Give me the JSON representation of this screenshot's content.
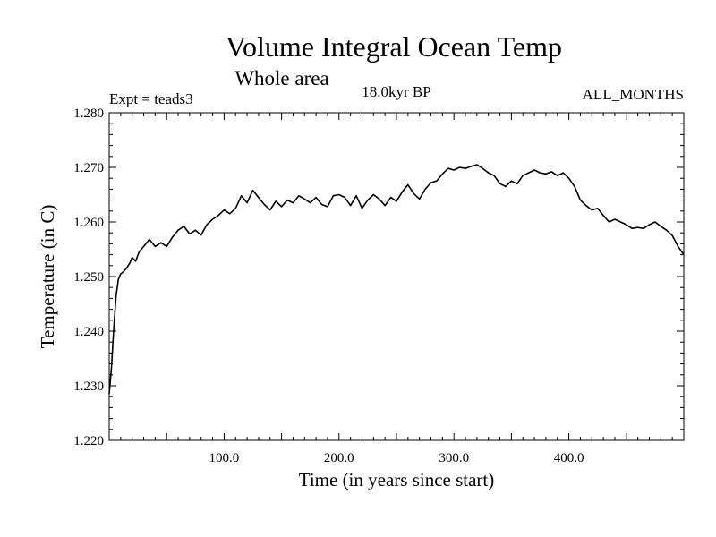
{
  "chart_data": {
    "type": "line",
    "title": "Volume Integral Ocean Temp",
    "subtitle": "Whole area",
    "left_label": "Expt = teads3",
    "center_label": "18.0kyr BP",
    "right_label": "ALL_MONTHS",
    "xlabel": "Time (in years since start)",
    "ylabel": "Temperature (in C)",
    "xlim": [
      0,
      500
    ],
    "ylim": [
      1.22,
      1.28
    ],
    "x_ticks": [
      100,
      200,
      300,
      400
    ],
    "x_tick_labels": [
      "100.0",
      "200.0",
      "300.0",
      "400.0"
    ],
    "y_ticks": [
      1.22,
      1.23,
      1.24,
      1.25,
      1.26,
      1.27,
      1.28
    ],
    "y_tick_labels": [
      "1.220",
      "1.230",
      "1.240",
      "1.250",
      "1.260",
      "1.270",
      "1.280"
    ],
    "series": [
      {
        "name": "Volume Integral Ocean Temp",
        "x": [
          0,
          2,
          4,
          6,
          8,
          10,
          12,
          15,
          18,
          20,
          23,
          26,
          30,
          35,
          40,
          45,
          50,
          55,
          60,
          65,
          70,
          75,
          80,
          85,
          90,
          95,
          100,
          105,
          110,
          115,
          120,
          125,
          130,
          135,
          140,
          145,
          150,
          155,
          160,
          165,
          170,
          175,
          180,
          185,
          190,
          195,
          200,
          205,
          210,
          215,
          220,
          225,
          230,
          235,
          240,
          245,
          250,
          255,
          260,
          265,
          270,
          275,
          280,
          285,
          290,
          295,
          300,
          305,
          310,
          315,
          320,
          325,
          330,
          335,
          340,
          345,
          350,
          355,
          360,
          365,
          370,
          375,
          380,
          385,
          390,
          395,
          400,
          405,
          410,
          415,
          420,
          425,
          430,
          435,
          440,
          445,
          450,
          455,
          460,
          465,
          470,
          475,
          480,
          485,
          490,
          495,
          500
        ],
        "values": [
          1.2285,
          1.2335,
          1.2405,
          1.2465,
          1.2495,
          1.2505,
          1.2508,
          1.2515,
          1.2525,
          1.2535,
          1.2528,
          1.2545,
          1.2555,
          1.2568,
          1.2555,
          1.2562,
          1.2555,
          1.2572,
          1.2585,
          1.2592,
          1.2578,
          1.2585,
          1.2576,
          1.2595,
          1.2605,
          1.2612,
          1.2622,
          1.2615,
          1.2625,
          1.2648,
          1.2635,
          1.2658,
          1.2645,
          1.2632,
          1.2622,
          1.2638,
          1.2628,
          1.264,
          1.2635,
          1.2648,
          1.2642,
          1.2635,
          1.2645,
          1.2632,
          1.2628,
          1.2648,
          1.265,
          1.2645,
          1.263,
          1.2648,
          1.2625,
          1.264,
          1.265,
          1.2642,
          1.263,
          1.2645,
          1.2638,
          1.2655,
          1.2668,
          1.2652,
          1.2642,
          1.266,
          1.2672,
          1.2675,
          1.2688,
          1.2698,
          1.2695,
          1.27,
          1.2698,
          1.2702,
          1.2705,
          1.2698,
          1.269,
          1.2685,
          1.267,
          1.2665,
          1.2675,
          1.267,
          1.2685,
          1.269,
          1.2695,
          1.269,
          1.2688,
          1.2692,
          1.2685,
          1.269,
          1.268,
          1.2665,
          1.264,
          1.263,
          1.2622,
          1.2625,
          1.2612,
          1.26,
          1.2605,
          1.26,
          1.2595,
          1.2588,
          1.259,
          1.2588,
          1.2595,
          1.26,
          1.2592,
          1.2585,
          1.2575,
          1.2555,
          1.254
        ]
      }
    ],
    "grid": false,
    "legend": "none"
  }
}
